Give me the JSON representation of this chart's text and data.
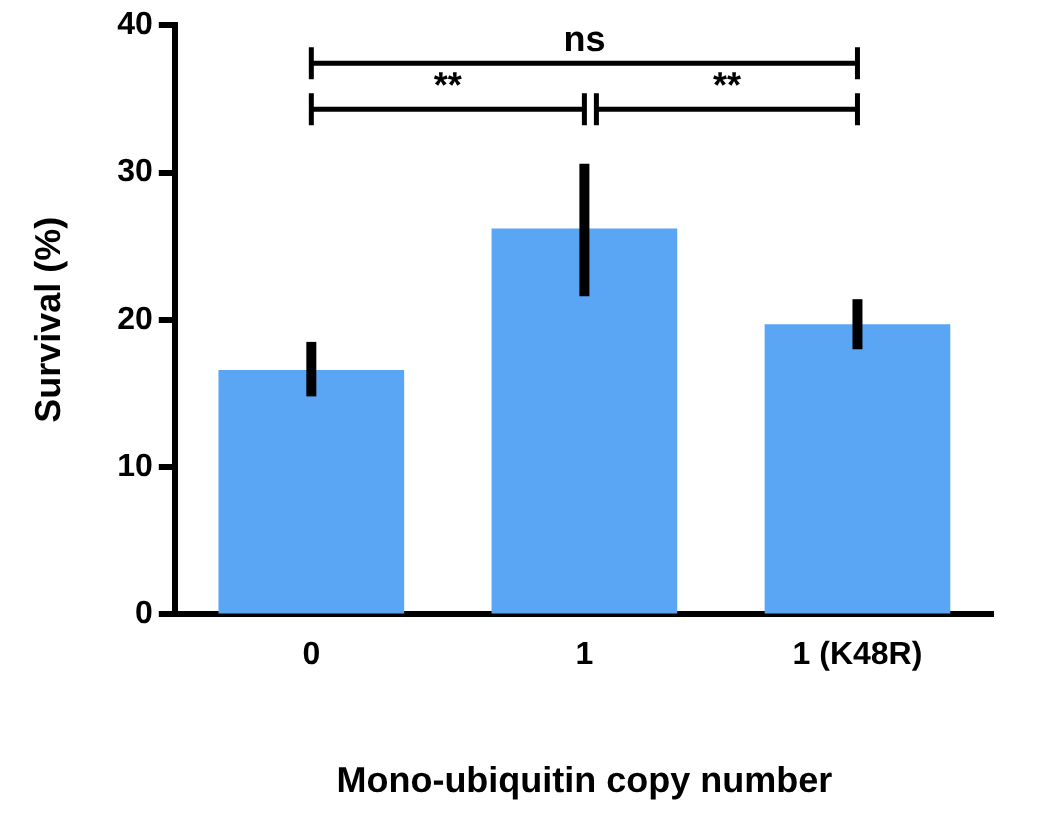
{
  "chart_data": {
    "type": "bar",
    "xlabel": "Mono-ubiquitin copy number",
    "ylabel": "Survival (%)",
    "categories": [
      "0",
      "1",
      "1 (K48R)"
    ],
    "values": [
      16.6,
      26.2,
      19.7
    ],
    "errors": [
      [
        14.8,
        18.5
      ],
      [
        21.6,
        30.6
      ],
      [
        18.0,
        21.4
      ]
    ],
    "color": "#5aa6f5",
    "ylim": [
      0,
      40
    ],
    "yticks": [
      0,
      10,
      20,
      30,
      40
    ],
    "grid": false,
    "legend": false,
    "annotations": [
      "**",
      "**",
      "ns"
    ]
  }
}
